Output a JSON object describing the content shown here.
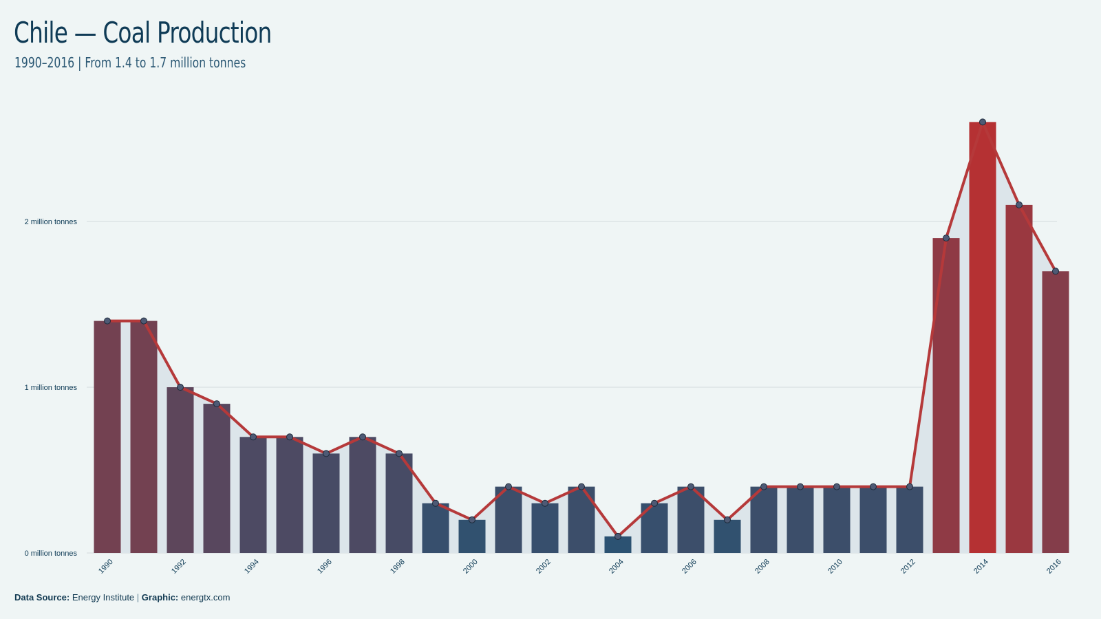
{
  "title": "Chile — Coal Production",
  "subtitle": "1990–2016 | From 1.4 to 1.7 million tonnes",
  "footer": {
    "source_label": "Data Source:",
    "source_value": "Energy Institute",
    "separator": "|",
    "graphic_label": "Graphic:",
    "graphic_value": "energtx.com"
  },
  "colors": {
    "background": "#eff5f5",
    "line": "#b5393a",
    "area": "#dce5ea",
    "gridline": "#d3dadd",
    "bar_low": "#2c5272",
    "bar_high": "#b53133",
    "marker_fill": "#4e5a75",
    "text": "#0d3a55"
  },
  "chart_data": {
    "type": "bar",
    "title": "Chile — Coal Production",
    "subtitle": "1990–2016 | From 1.4 to 1.7 million tonnes",
    "unit": "million tonnes",
    "ylim": [
      0,
      2.7
    ],
    "yticks": [
      0,
      1,
      2
    ],
    "ytick_labels": [
      "0 million tonnes",
      "1 million tonnes",
      "2 million tonnes"
    ],
    "grid": true,
    "overlay": "line with markers and shaded area",
    "x": [
      1990,
      1991,
      1992,
      1993,
      1994,
      1995,
      1996,
      1997,
      1998,
      1999,
      2000,
      2001,
      2002,
      2003,
      2004,
      2005,
      2006,
      2007,
      2008,
      2009,
      2010,
      2011,
      2012,
      2013,
      2014,
      2015,
      2016
    ],
    "xtick_labels": [
      "1990",
      "1992",
      "1994",
      "1996",
      "1998",
      "2000",
      "2002",
      "2004",
      "2006",
      "2008",
      "2010",
      "2012",
      "2014",
      "2016"
    ],
    "values": [
      1.4,
      1.4,
      1.0,
      0.9,
      0.7,
      0.7,
      0.6,
      0.7,
      0.6,
      0.3,
      0.2,
      0.4,
      0.3,
      0.4,
      0.1,
      0.3,
      0.4,
      0.2,
      0.4,
      0.4,
      0.4,
      0.4,
      0.4,
      1.9,
      2.6,
      2.1,
      1.7
    ]
  }
}
